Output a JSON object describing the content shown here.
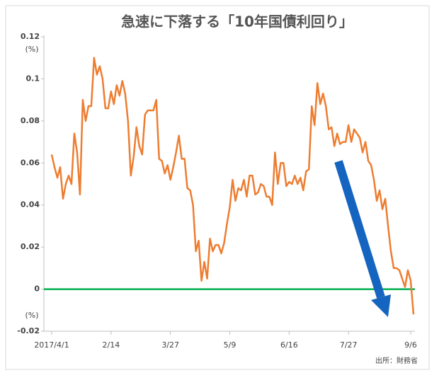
{
  "chart_data": {
    "type": "line",
    "title": "急速に下落する「10年国債利回り」",
    "y_unit_top": "(%)",
    "y_unit_bottom": "(%)",
    "source": "出所：財務省",
    "categories": [
      "2017/4/1",
      null,
      null,
      null,
      null,
      null,
      null,
      null,
      null,
      null,
      null,
      null,
      null,
      null,
      null,
      null,
      null,
      null,
      null,
      null,
      null,
      "2/14",
      null,
      null,
      null,
      null,
      null,
      null,
      null,
      null,
      null,
      null,
      null,
      null,
      null,
      null,
      null,
      null,
      null,
      null,
      null,
      null,
      "3/27",
      null,
      null,
      null,
      null,
      null,
      null,
      null,
      null,
      null,
      null,
      null,
      null,
      null,
      null,
      null,
      null,
      null,
      null,
      null,
      null,
      "5/9",
      null,
      null,
      null,
      null,
      null,
      null,
      null,
      null,
      null,
      null,
      null,
      null,
      null,
      null,
      null,
      null,
      null,
      null,
      null,
      null,
      "6/16",
      null,
      null,
      null,
      null,
      null,
      null,
      null,
      null,
      null,
      null,
      null,
      null,
      null,
      null,
      null,
      null,
      null,
      null,
      null,
      null,
      "7/27",
      null,
      null,
      null,
      null,
      null,
      null,
      null,
      null,
      null,
      null,
      null,
      null,
      null,
      null,
      null,
      null,
      null,
      null,
      null,
      null,
      null,
      "9/6",
      null
    ],
    "series": [
      {
        "name": "10年国債利回り",
        "color": "#ed7d31",
        "values": [
          0.064,
          0.058,
          0.053,
          0.058,
          0.043,
          0.05,
          0.054,
          0.05,
          0.074,
          0.065,
          0.045,
          0.09,
          0.08,
          0.087,
          0.087,
          0.11,
          0.102,
          0.106,
          0.1,
          0.086,
          0.086,
          0.094,
          0.088,
          0.097,
          0.092,
          0.099,
          0.093,
          0.08,
          0.054,
          0.063,
          0.077,
          0.068,
          0.064,
          0.083,
          0.085,
          0.085,
          0.085,
          0.09,
          0.062,
          0.061,
          0.055,
          0.059,
          0.052,
          0.058,
          0.065,
          0.073,
          0.062,
          0.062,
          0.048,
          0.047,
          0.04,
          0.018,
          0.023,
          0.004,
          0.013,
          0.005,
          0.024,
          0.018,
          0.021,
          0.021,
          0.017,
          0.022,
          0.031,
          0.039,
          0.052,
          0.042,
          0.048,
          0.047,
          0.052,
          0.044,
          0.054,
          0.054,
          0.045,
          0.046,
          0.05,
          0.049,
          0.044,
          0.044,
          0.04,
          0.065,
          0.05,
          0.06,
          0.06,
          0.049,
          0.051,
          0.05,
          0.054,
          0.05,
          0.053,
          0.047,
          0.056,
          0.057,
          0.087,
          0.078,
          0.098,
          0.088,
          0.093,
          0.087,
          0.076,
          0.077,
          0.068,
          0.074,
          0.069,
          0.07,
          0.07,
          0.078,
          0.07,
          0.076,
          0.074,
          0.072,
          0.065,
          0.07,
          0.061,
          0.059,
          0.052,
          0.042,
          0.047,
          0.038,
          0.043,
          0.03,
          0.018,
          0.01,
          0.01,
          0.009,
          0.005,
          0.001,
          0.009,
          0.004,
          -0.012
        ]
      }
    ],
    "ylim": [
      -0.02,
      0.12
    ],
    "yticks": [
      -0.02,
      0,
      0.02,
      0.04,
      0.06,
      0.08,
      0.1,
      0.12
    ],
    "reference_line": {
      "value": 0,
      "color": "#00b050"
    },
    "grid": false
  }
}
